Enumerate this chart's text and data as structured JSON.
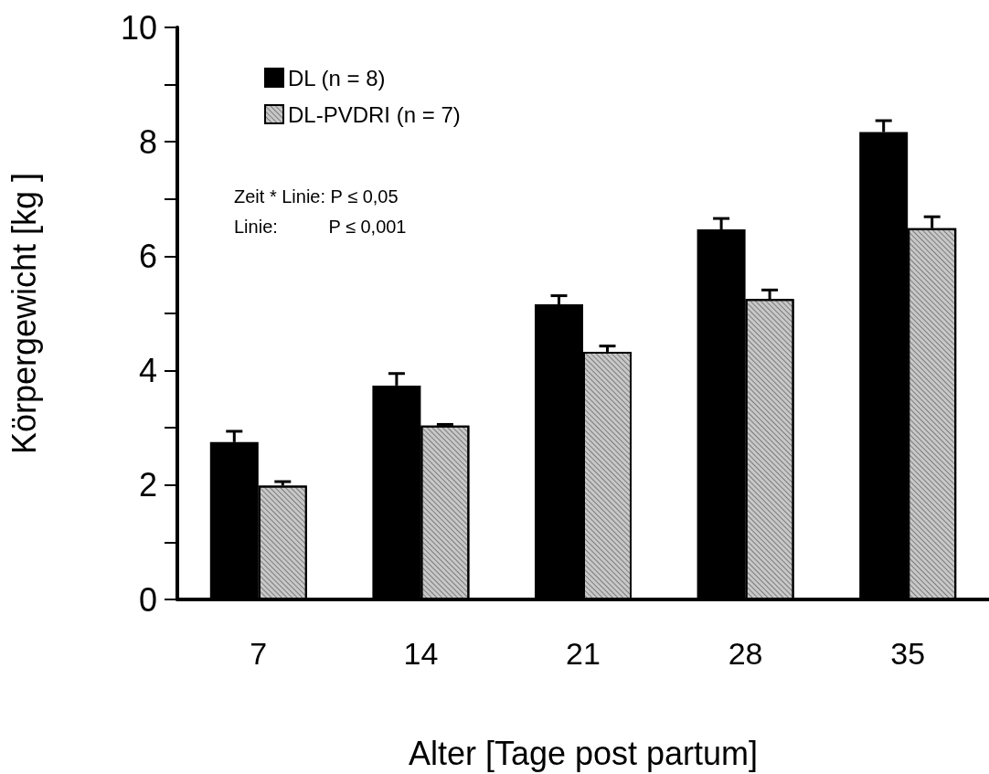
{
  "chart_data": {
    "type": "bar",
    "xlabel": "Alter [Tage post partum]",
    "ylabel": "Körpergewicht [kg ]",
    "categories": [
      "7",
      "14",
      "21",
      "28",
      "35"
    ],
    "series": [
      {
        "name": "DL (n = 8)",
        "color": "#000000",
        "values": [
          2.75,
          3.74,
          5.16,
          6.47,
          8.17
        ],
        "errors": [
          [
            2.75,
            2.94
          ],
          [
            3.74,
            3.95
          ],
          [
            5.16,
            5.31
          ],
          [
            6.47,
            6.66
          ],
          [
            8.17,
            8.37
          ]
        ]
      },
      {
        "name": "DL-PVDRI (n = 7)",
        "color": "#c8c8c8",
        "values": [
          1.99,
          3.04,
          4.33,
          5.25,
          6.49
        ],
        "errors": [
          [
            1.99,
            2.06
          ],
          [
            3.04,
            3.06
          ],
          [
            4.33,
            4.43
          ],
          [
            5.25,
            5.41
          ],
          [
            6.49,
            6.69
          ]
        ]
      }
    ],
    "ylim": [
      0,
      10
    ],
    "yticks": [
      0,
      {
        "value": 1,
        "label": null
      },
      2,
      {
        "value": 3,
        "label": null
      },
      4,
      {
        "value": 5,
        "label": null
      },
      6,
      {
        "value": 7,
        "label": null
      },
      8,
      {
        "value": 9,
        "label": null
      },
      10
    ],
    "annotations": [
      "Zeit * Linie: P ≤ 0,05",
      "Linie:          P ≤ 0,001"
    ],
    "legend": "top left",
    "grid": false
  }
}
